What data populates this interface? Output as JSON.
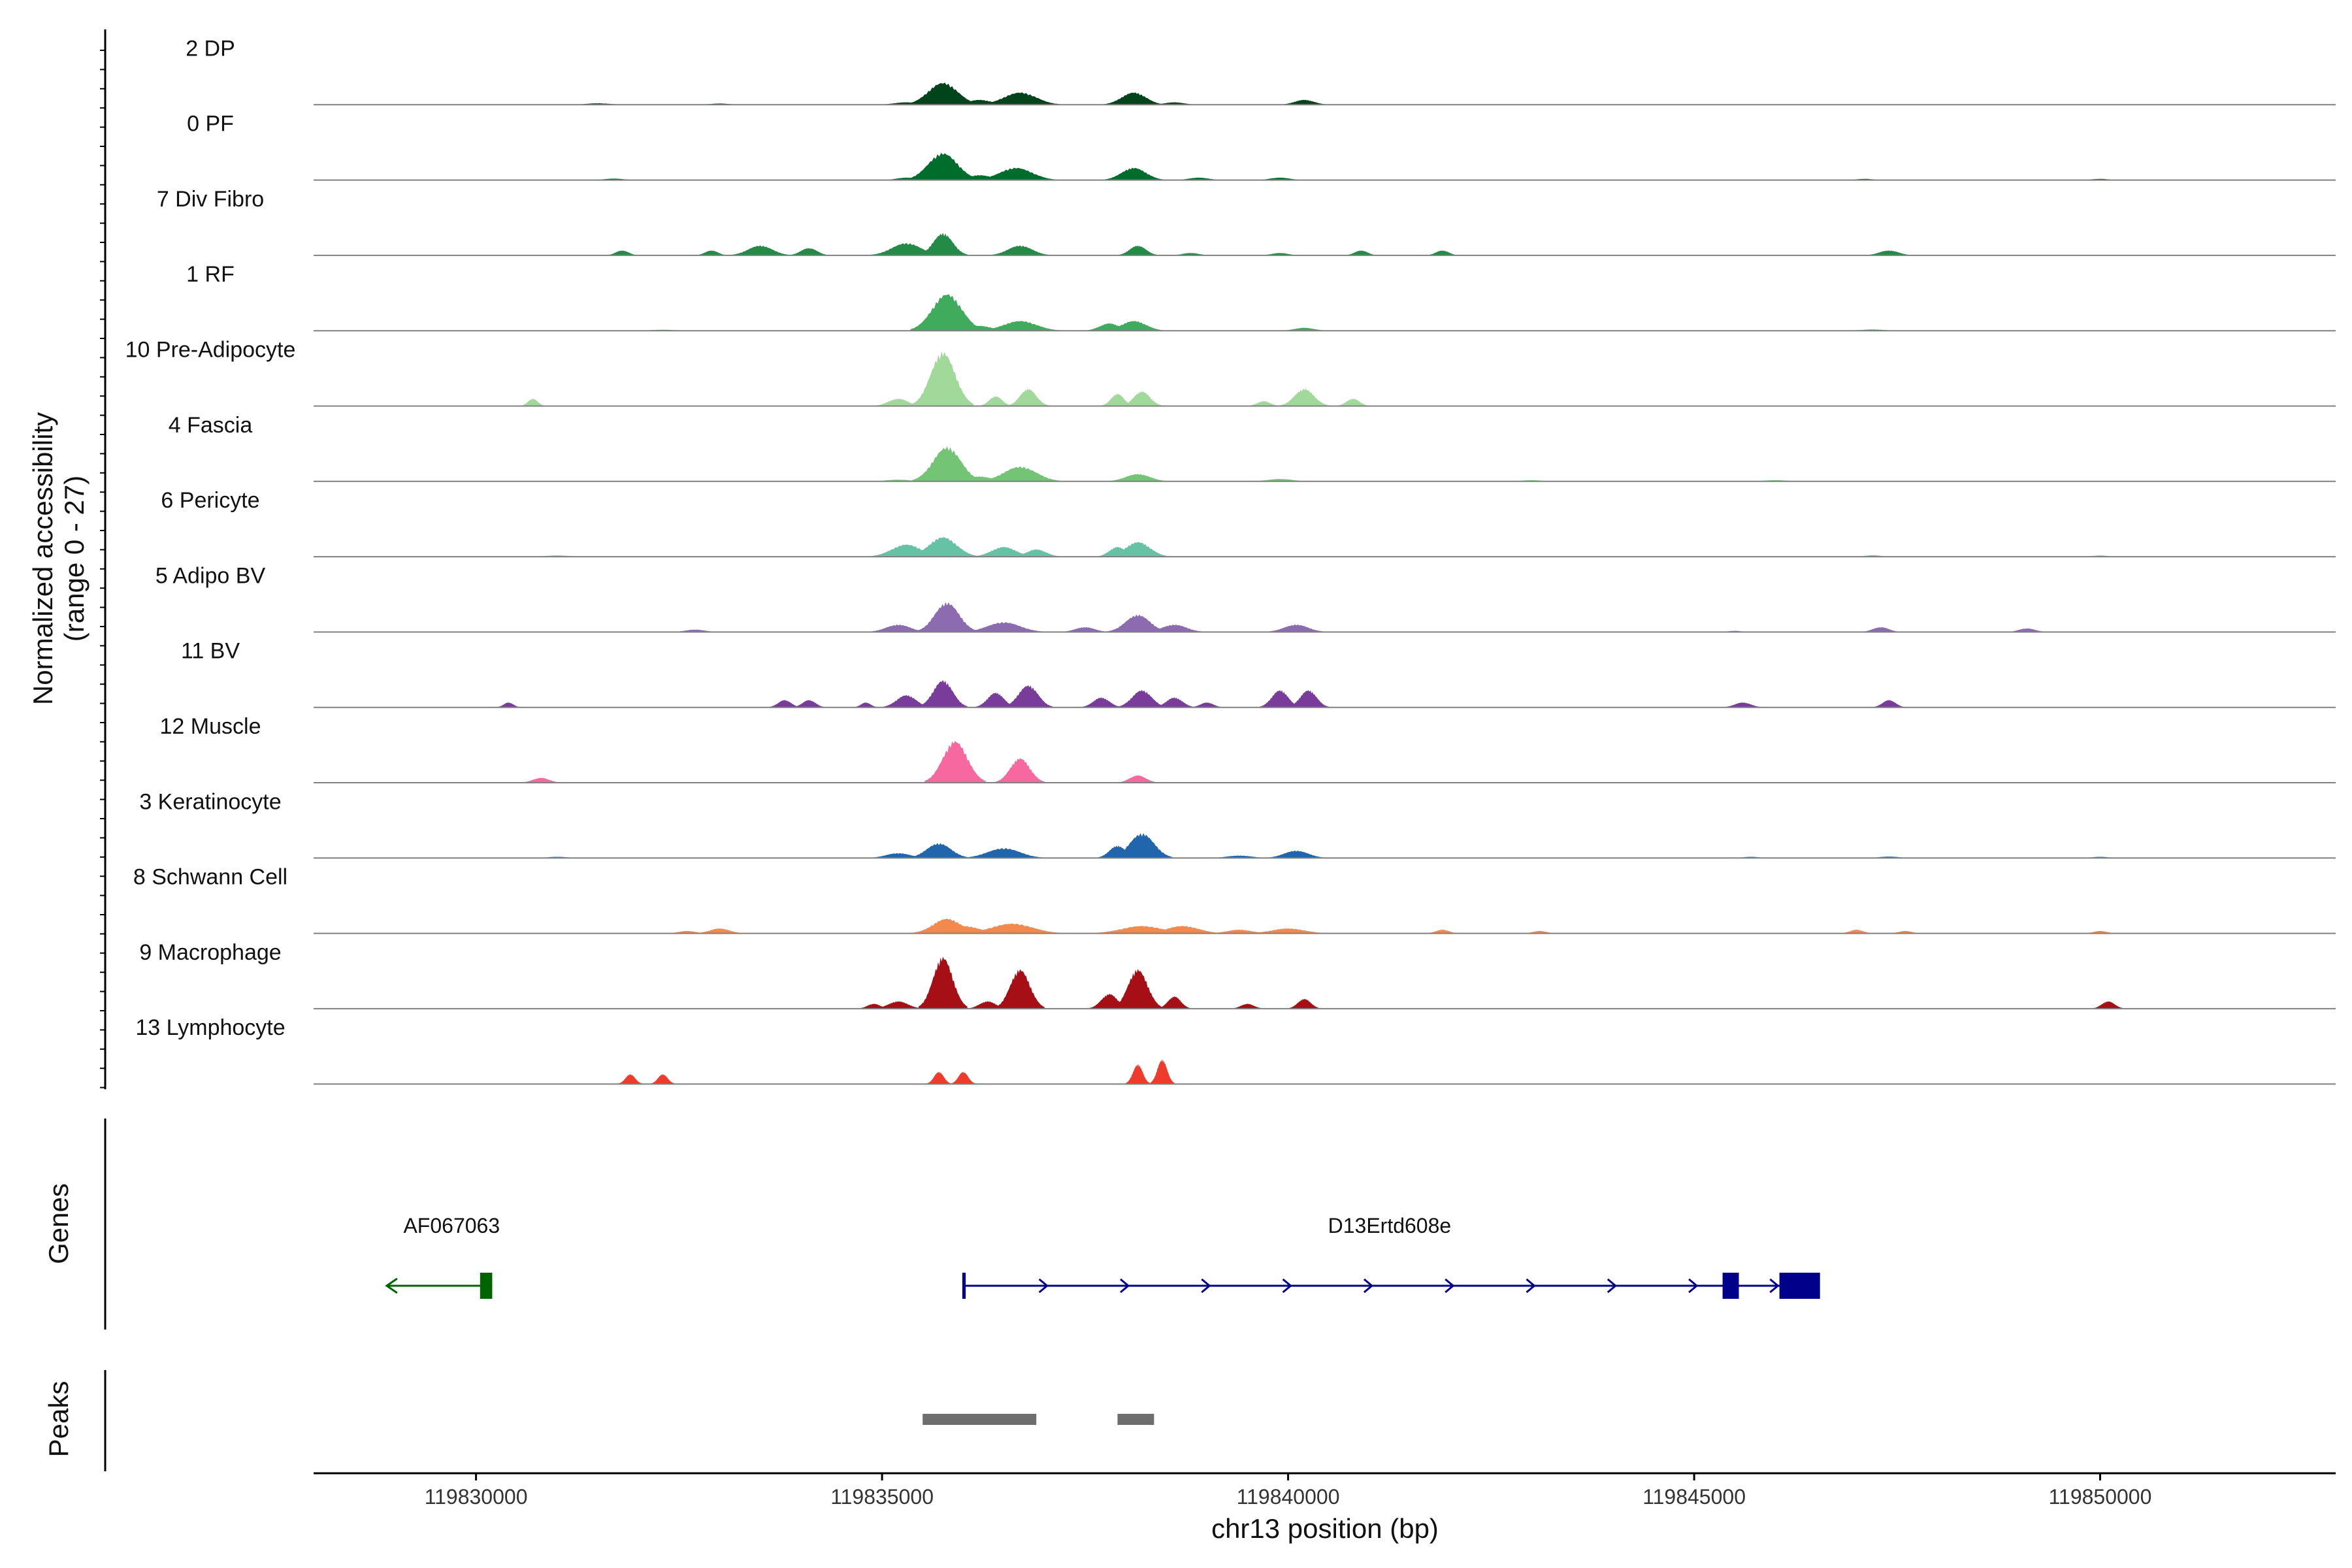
{
  "chart_data": {
    "type": "area",
    "title": "",
    "ylabel": "Normalized accessibility",
    "ylabel_range": "(range 0 - 27)",
    "y_range": [
      0,
      27
    ],
    "xlabel": "chr13 position (bp)",
    "xlim": [
      119828000,
      119852900
    ],
    "x_ticks": [
      119830000,
      119835000,
      119840000,
      119845000,
      119850000
    ],
    "x_tick_labels": [
      "119830000",
      "119835000",
      "119840000",
      "119845000",
      "119850000"
    ],
    "tracks": [
      {
        "name": "2 DP",
        "color": "#00441b",
        "peaks": [
          [
            119835750,
            9,
            180
          ],
          [
            119836700,
            5,
            200
          ],
          [
            119838100,
            5,
            150
          ],
          [
            119836200,
            2,
            150
          ],
          [
            119835300,
            1,
            150
          ],
          [
            119838600,
            1,
            120
          ],
          [
            119840200,
            2,
            120
          ],
          [
            119831500,
            0.6,
            150
          ],
          [
            119833000,
            0.5,
            120
          ]
        ]
      },
      {
        "name": "0 PF",
        "color": "#006d2c",
        "peaks": [
          [
            119835750,
            11,
            180
          ],
          [
            119836650,
            5,
            200
          ],
          [
            119838100,
            5,
            150
          ],
          [
            119836200,
            2,
            150
          ],
          [
            119835300,
            1,
            120
          ],
          [
            119838900,
            1,
            120
          ],
          [
            119839900,
            1,
            120
          ],
          [
            119831700,
            0.6,
            120
          ],
          [
            119847100,
            0.5,
            100
          ],
          [
            119850000,
            0.5,
            100
          ]
        ]
      },
      {
        "name": "7 Div Fibro",
        "color": "#238b45",
        "peaks": [
          [
            119835750,
            9,
            120
          ],
          [
            119835300,
            5,
            180
          ],
          [
            119836700,
            4,
            150
          ],
          [
            119833500,
            4,
            150
          ],
          [
            119838150,
            4,
            100
          ],
          [
            119834100,
            3,
            100
          ],
          [
            119831800,
            2,
            80
          ],
          [
            119832900,
            2,
            80
          ],
          [
            119840900,
            2,
            80
          ],
          [
            119841900,
            2,
            80
          ],
          [
            119847400,
            2,
            120
          ],
          [
            119838800,
            1,
            100
          ],
          [
            119839900,
            1,
            100
          ]
        ]
      },
      {
        "name": "1 RF",
        "color": "#41ab5d",
        "peaks": [
          [
            119835800,
            15,
            180
          ],
          [
            119836700,
            4,
            200
          ],
          [
            119838100,
            4,
            150
          ],
          [
            119837800,
            3,
            120
          ],
          [
            119836200,
            2,
            150
          ],
          [
            119840200,
            1.2,
            120
          ],
          [
            119832300,
            0.4,
            150
          ],
          [
            119847200,
            0.5,
            150
          ]
        ]
      },
      {
        "name": "10 Pre-Adipocyte",
        "color": "#a1d99b",
        "peaks": [
          [
            119835750,
            22,
            150
          ],
          [
            119836800,
            7,
            100
          ],
          [
            119838200,
            6,
            100
          ],
          [
            119837900,
            5,
            80
          ],
          [
            119840200,
            7,
            120
          ],
          [
            119836400,
            4,
            80
          ],
          [
            119835200,
            3,
            120
          ],
          [
            119830700,
            3,
            60
          ],
          [
            119839700,
            2,
            80
          ],
          [
            119840800,
            3,
            80
          ]
        ]
      },
      {
        "name": "4 Fascia",
        "color": "#74c476",
        "peaks": [
          [
            119835800,
            14,
            170
          ],
          [
            119836700,
            6,
            200
          ],
          [
            119838150,
            3,
            150
          ],
          [
            119836200,
            2,
            150
          ],
          [
            119839900,
            1,
            150
          ],
          [
            119835200,
            0.7,
            150
          ],
          [
            119843000,
            0.5,
            120
          ],
          [
            119846000,
            0.5,
            150
          ]
        ]
      },
      {
        "name": "6 Pericyte",
        "color": "#66c2a4",
        "peaks": [
          [
            119835750,
            8,
            170
          ],
          [
            119835300,
            5,
            180
          ],
          [
            119836500,
            4,
            150
          ],
          [
            119836900,
            3,
            120
          ],
          [
            119838150,
            6,
            150
          ],
          [
            119837900,
            4,
            100
          ],
          [
            119831000,
            0.5,
            150
          ],
          [
            119847200,
            0.6,
            100
          ],
          [
            119850000,
            0.5,
            100
          ]
        ]
      },
      {
        "name": "5 Adipo BV",
        "color": "#8c6bb1",
        "peaks": [
          [
            119835800,
            12,
            150
          ],
          [
            119836500,
            4,
            200
          ],
          [
            119835200,
            3,
            150
          ],
          [
            119838150,
            7,
            150
          ],
          [
            119838600,
            3,
            150
          ],
          [
            119837500,
            2,
            120
          ],
          [
            119840100,
            3,
            150
          ],
          [
            119832700,
            1,
            120
          ],
          [
            119845500,
            0.5,
            80
          ],
          [
            119847300,
            2,
            100
          ],
          [
            119849100,
            1.5,
            100
          ]
        ]
      },
      {
        "name": "11 BV",
        "color": "#7a3c9a",
        "peaks": [
          [
            119835750,
            11,
            120
          ],
          [
            119836800,
            9,
            120
          ],
          [
            119836400,
            6,
            100
          ],
          [
            119835300,
            5,
            120
          ],
          [
            119838200,
            7,
            120
          ],
          [
            119838600,
            4,
            100
          ],
          [
            119837700,
            4,
            100
          ],
          [
            119839900,
            7,
            100
          ],
          [
            119840250,
            7,
            100
          ],
          [
            119834100,
            3,
            80
          ],
          [
            119833800,
            3,
            80
          ],
          [
            119830400,
            2,
            60
          ],
          [
            119845600,
            2,
            100
          ],
          [
            119847400,
            3,
            80
          ],
          [
            119834800,
            2,
            60
          ],
          [
            119839000,
            2,
            80
          ]
        ]
      },
      {
        "name": "12 Muscle",
        "color": "#f768a1",
        "peaks": [
          [
            119835900,
            17,
            150
          ],
          [
            119836700,
            10,
            120
          ],
          [
            119838150,
            3,
            100
          ],
          [
            119830800,
            2,
            100
          ]
        ]
      },
      {
        "name": "3 Keratinocyte",
        "color": "#2166ac",
        "peaks": [
          [
            119835700,
            6,
            150
          ],
          [
            119838200,
            10,
            150
          ],
          [
            119836500,
            4,
            200
          ],
          [
            119837900,
            5,
            100
          ],
          [
            119840100,
            3,
            150
          ],
          [
            119835200,
            2,
            150
          ],
          [
            119839400,
            1,
            150
          ],
          [
            119831000,
            0.5,
            120
          ],
          [
            119845700,
            0.5,
            100
          ],
          [
            119847400,
            0.6,
            120
          ],
          [
            119850000,
            0.5,
            100
          ]
        ]
      },
      {
        "name": "8 Schwann Cell",
        "color": "#f4894d",
        "peaks": [
          [
            119835800,
            6,
            170
          ],
          [
            119836600,
            4,
            250
          ],
          [
            119836000,
            3,
            200
          ],
          [
            119838200,
            3,
            250
          ],
          [
            119838700,
            3,
            200
          ],
          [
            119840000,
            2,
            200
          ],
          [
            119833000,
            2,
            120
          ],
          [
            119832600,
            1,
            100
          ],
          [
            119839400,
            1.5,
            150
          ],
          [
            119841900,
            1.5,
            80
          ],
          [
            119843100,
            1,
            80
          ],
          [
            119847000,
            1.5,
            80
          ],
          [
            119847600,
            1,
            80
          ],
          [
            119850000,
            1,
            80
          ]
        ]
      },
      {
        "name": "9 Macrophage",
        "color": "#a50f15",
        "peaks": [
          [
            119835750,
            21,
            120
          ],
          [
            119836700,
            16,
            120
          ],
          [
            119838150,
            16,
            120
          ],
          [
            119837800,
            6,
            100
          ],
          [
            119838600,
            5,
            80
          ],
          [
            119835200,
            3,
            120
          ],
          [
            119836300,
            3,
            100
          ],
          [
            119840200,
            4,
            80
          ],
          [
            119839500,
            2,
            80
          ],
          [
            119850100,
            3,
            80
          ],
          [
            119834900,
            2,
            80
          ]
        ]
      },
      {
        "name": "13 Lymphocyte",
        "color": "#ef3b2c",
        "peaks": [
          [
            119835700,
            5,
            60
          ],
          [
            119836000,
            5,
            60
          ],
          [
            119838150,
            8,
            60
          ],
          [
            119838450,
            10,
            60
          ],
          [
            119831900,
            4,
            60
          ],
          [
            119832300,
            4,
            60
          ]
        ]
      }
    ],
    "genes": {
      "title": "Genes",
      "items": [
        {
          "name": "AF067063",
          "start": 119828900,
          "end": 119830200,
          "strand": "-",
          "color": "#006400",
          "exons": [
            [
              119830050,
              119830200
            ]
          ]
        },
        {
          "name": "D13Ertd608e",
          "start": 119836000,
          "end": 119846500,
          "strand": "+",
          "color": "#00008b",
          "exons": [
            [
              119835990,
              119836030
            ],
            [
              119845350,
              119845550
            ],
            [
              119846050,
              119846550
            ]
          ]
        }
      ]
    },
    "peak_regions": {
      "title": "Peaks",
      "color": "#6e6e6e",
      "regions": [
        [
          119835500,
          119836900
        ],
        [
          119837900,
          119838350
        ]
      ]
    }
  }
}
